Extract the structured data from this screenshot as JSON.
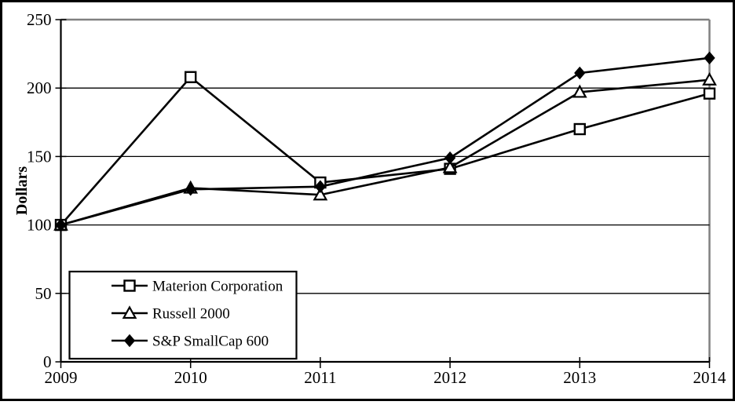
{
  "figure": {
    "background": "#ffffff",
    "border_color": "#000000",
    "frame_color": "#808080",
    "line_color": "#000000",
    "text_color": "#000000"
  },
  "chart_data": {
    "type": "line",
    "title": "",
    "xlabel": "",
    "ylabel": "Dollars",
    "x": [
      2009,
      2010,
      2011,
      2012,
      2013,
      2014
    ],
    "x_tick_labels": [
      "2009",
      "2010",
      "2011",
      "2012",
      "2013",
      "2014"
    ],
    "y_ticks": [
      0,
      50,
      100,
      150,
      200,
      250
    ],
    "y_tick_labels": [
      "0",
      "50",
      "100",
      "150",
      "200",
      "250"
    ],
    "ylim": [
      0,
      250
    ],
    "grid": true,
    "legend_position": "inside-bottom-left",
    "series": [
      {
        "name": "Materion Corporation",
        "marker": "open-square",
        "color": "#000000",
        "values": [
          100,
          208,
          131,
          141,
          170,
          196
        ]
      },
      {
        "name": "Russell 2000",
        "marker": "open-triangle",
        "color": "#000000",
        "values": [
          100,
          127,
          122,
          142,
          197,
          206
        ]
      },
      {
        "name": "S&P SmallCap 600",
        "marker": "filled-diamond",
        "color": "#000000",
        "values": [
          100,
          126,
          128,
          149,
          211,
          222
        ]
      }
    ]
  }
}
